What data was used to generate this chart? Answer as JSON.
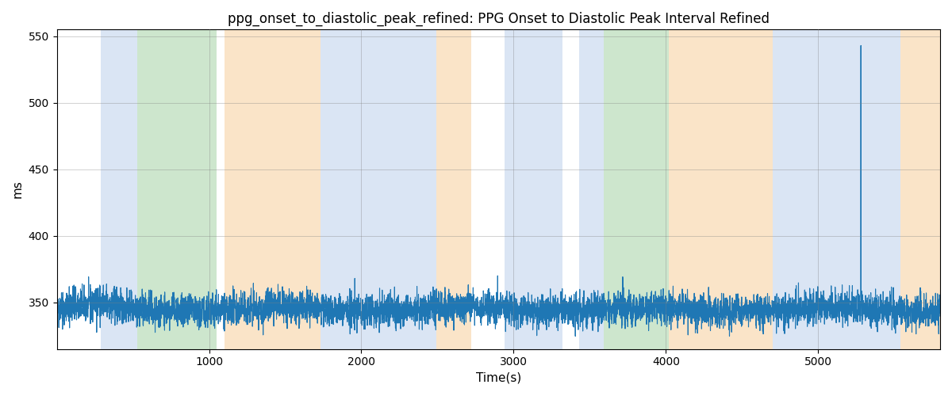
{
  "title": "ppg_onset_to_diastolic_peak_refined: PPG Onset to Diastolic Peak Interval Refined",
  "xlabel": "Time(s)",
  "ylabel": "ms",
  "ylim": [
    315,
    555
  ],
  "xlim": [
    0,
    5800
  ],
  "yticks": [
    350,
    400,
    450,
    500,
    550
  ],
  "xticks": [
    1000,
    2000,
    3000,
    4000,
    5000
  ],
  "line_color": "#1f77b4",
  "line_width": 0.8,
  "bg_regions": [
    {
      "xmin": 0,
      "xmax": 290,
      "color": "#ffffff",
      "alpha": 0.0
    },
    {
      "xmin": 290,
      "xmax": 530,
      "color": "#aec6e8",
      "alpha": 0.45
    },
    {
      "xmin": 530,
      "xmax": 1050,
      "color": "#90c990",
      "alpha": 0.45
    },
    {
      "xmin": 1050,
      "xmax": 1100,
      "color": "#ffffff",
      "alpha": 0.0
    },
    {
      "xmin": 1100,
      "xmax": 1730,
      "color": "#f5c587",
      "alpha": 0.45
    },
    {
      "xmin": 1730,
      "xmax": 2490,
      "color": "#aec6e8",
      "alpha": 0.45
    },
    {
      "xmin": 2490,
      "xmax": 2720,
      "color": "#f5c587",
      "alpha": 0.45
    },
    {
      "xmin": 2720,
      "xmax": 2940,
      "color": "#ffffff",
      "alpha": 0.0
    },
    {
      "xmin": 2940,
      "xmax": 3320,
      "color": "#aec6e8",
      "alpha": 0.45
    },
    {
      "xmin": 3320,
      "xmax": 3430,
      "color": "#ffffff",
      "alpha": 0.0
    },
    {
      "xmin": 3430,
      "xmax": 3590,
      "color": "#aec6e8",
      "alpha": 0.45
    },
    {
      "xmin": 3590,
      "xmax": 4020,
      "color": "#90c990",
      "alpha": 0.45
    },
    {
      "xmin": 4020,
      "xmax": 4700,
      "color": "#f5c587",
      "alpha": 0.45
    },
    {
      "xmin": 4700,
      "xmax": 5540,
      "color": "#aec6e8",
      "alpha": 0.45
    },
    {
      "xmin": 5540,
      "xmax": 5800,
      "color": "#f5c587",
      "alpha": 0.45
    }
  ],
  "seed": 42,
  "n_points": 5800,
  "base_value": 345,
  "noise_std": 5.5,
  "spike_x": 5280,
  "spike_y": 543
}
